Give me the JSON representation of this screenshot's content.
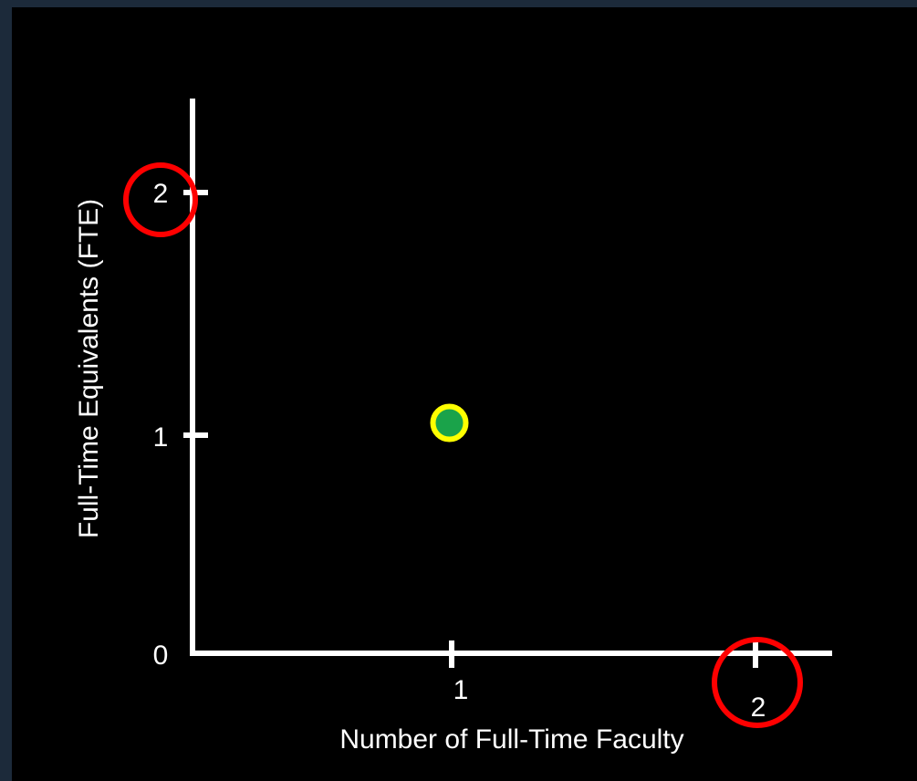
{
  "chart_data": {
    "type": "scatter",
    "title": "",
    "xlabel": "Number of Full-Time Faculty",
    "ylabel": "Full-Time Equivalents (FTE)",
    "xlim": [
      0,
      2
    ],
    "ylim": [
      0,
      2
    ],
    "x_ticks": [
      "1",
      "2"
    ],
    "y_ticks": [
      "0",
      "1",
      "2"
    ],
    "grid": false,
    "points": [
      {
        "x": 1,
        "y": 1
      }
    ],
    "annotations": [
      {
        "type": "circle-highlight",
        "target": "y-tick-2"
      },
      {
        "type": "circle-highlight",
        "target": "x-tick-2"
      }
    ]
  },
  "colors": {
    "background": "#000000",
    "border": "#1c2a3a",
    "axis": "#ffffff",
    "point_fill": "#1aa34a",
    "point_outline": "#ffff00",
    "highlight": "#ff0000"
  }
}
